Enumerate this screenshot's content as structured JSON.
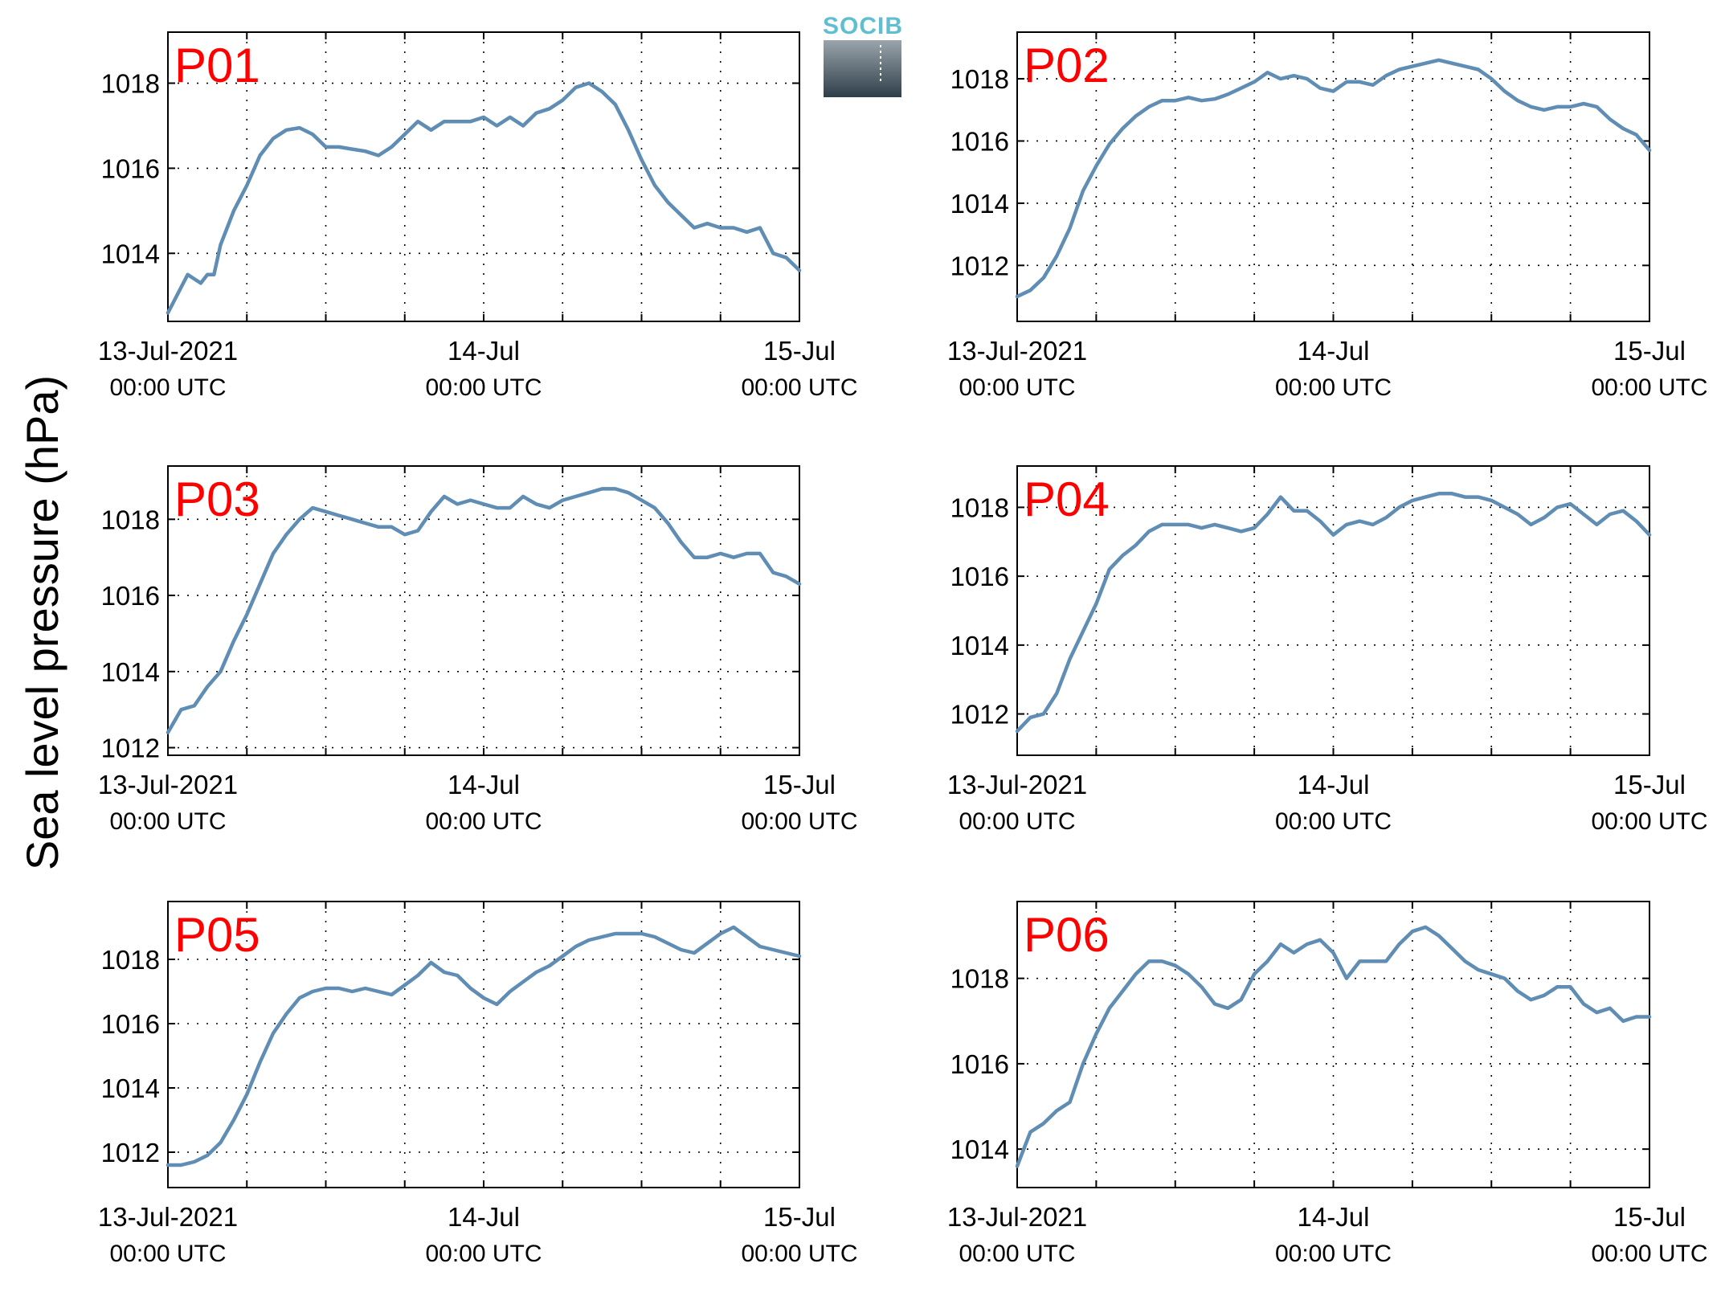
{
  "figure": {
    "ylabel": "Sea level pressure (hPa)",
    "colors": {
      "line": "#5f8db3",
      "title": "#ff0000",
      "logo_text": "#5fbfd0",
      "logo_top": "#9aa4ab",
      "logo_bottom": "#2f3f4a"
    },
    "logo": {
      "name": "socib-logo",
      "text": "SOCIB"
    }
  },
  "chart_data": [
    {
      "type": "line",
      "title": "P01",
      "x_unit": "hours since 13-Jul-2021 00:00 UTC",
      "xlim": [
        0,
        48
      ],
      "ylim": [
        1012.4,
        1019.2
      ],
      "yticks": [
        1014,
        1016,
        1018
      ],
      "xticks": [
        {
          "label": "13-Jul-2021",
          "sub": "00:00 UTC"
        },
        {
          "label": "14-Jul",
          "sub": "00:00 UTC"
        },
        {
          "label": "15-Jul",
          "sub": "00:00 UTC"
        }
      ],
      "grid": true,
      "x": [
        0,
        1,
        1.5,
        2,
        2.5,
        3,
        3.5,
        4,
        5,
        6,
        7,
        8,
        9,
        10,
        11,
        12,
        13,
        14,
        15,
        16,
        17,
        18,
        19,
        20,
        21,
        22,
        23,
        24,
        25,
        26,
        27,
        28,
        29,
        30,
        31,
        32,
        33,
        34,
        35,
        36,
        37,
        38,
        39,
        40,
        41,
        42,
        43,
        44,
        45,
        46,
        47,
        48
      ],
      "y": [
        1012.6,
        1013.2,
        1013.5,
        1013.4,
        1013.3,
        1013.5,
        1013.5,
        1014.2,
        1015.0,
        1015.6,
        1016.3,
        1016.7,
        1016.9,
        1016.95,
        1016.8,
        1016.5,
        1016.5,
        1016.45,
        1016.4,
        1016.3,
        1016.5,
        1016.8,
        1017.1,
        1016.9,
        1017.1,
        1017.1,
        1017.1,
        1017.2,
        1017.0,
        1017.2,
        1017.0,
        1017.3,
        1017.4,
        1017.6,
        1017.9,
        1018.0,
        1017.8,
        1017.5,
        1016.9,
        1016.2,
        1015.6,
        1015.2,
        1014.9,
        1014.6,
        1014.7,
        1014.6,
        1014.6,
        1014.5,
        1014.6,
        1014.0,
        1013.9,
        1013.6
      ]
    },
    {
      "type": "line",
      "title": "P02",
      "x_unit": "hours since 13-Jul-2021 00:00 UTC",
      "xlim": [
        0,
        48
      ],
      "ylim": [
        1010.2,
        1019.5
      ],
      "yticks": [
        1012,
        1014,
        1016,
        1018
      ],
      "xticks": [
        {
          "label": "13-Jul-2021",
          "sub": "00:00 UTC"
        },
        {
          "label": "14-Jul",
          "sub": "00:00 UTC"
        },
        {
          "label": "15-Jul",
          "sub": "00:00 UTC"
        }
      ],
      "grid": true,
      "x": [
        0,
        1,
        2,
        3,
        4,
        5,
        6,
        7,
        8,
        9,
        10,
        11,
        12,
        13,
        14,
        15,
        16,
        17,
        18,
        19,
        20,
        21,
        22,
        23,
        24,
        25,
        26,
        27,
        28,
        29,
        30,
        31,
        32,
        33,
        34,
        35,
        36,
        37,
        38,
        39,
        40,
        41,
        42,
        43,
        44,
        45,
        46,
        47,
        48
      ],
      "y": [
        1011.0,
        1011.2,
        1011.6,
        1012.3,
        1013.2,
        1014.4,
        1015.2,
        1015.9,
        1016.4,
        1016.8,
        1017.1,
        1017.3,
        1017.3,
        1017.4,
        1017.3,
        1017.35,
        1017.5,
        1017.7,
        1017.9,
        1018.2,
        1018.0,
        1018.1,
        1018.0,
        1017.7,
        1017.6,
        1017.9,
        1017.9,
        1017.8,
        1018.1,
        1018.3,
        1018.4,
        1018.5,
        1018.6,
        1018.5,
        1018.4,
        1018.3,
        1018.0,
        1017.6,
        1017.3,
        1017.1,
        1017.0,
        1017.1,
        1017.1,
        1017.2,
        1017.1,
        1016.7,
        1016.4,
        1016.2,
        1015.7
      ]
    },
    {
      "type": "line",
      "title": "P03",
      "x_unit": "hours since 13-Jul-2021 00:00 UTC",
      "xlim": [
        0,
        48
      ],
      "ylim": [
        1011.8,
        1019.4
      ],
      "yticks": [
        1012,
        1014,
        1016,
        1018
      ],
      "xticks": [
        {
          "label": "13-Jul-2021",
          "sub": "00:00 UTC"
        },
        {
          "label": "14-Jul",
          "sub": "00:00 UTC"
        },
        {
          "label": "15-Jul",
          "sub": "00:00 UTC"
        }
      ],
      "grid": true,
      "x": [
        0,
        1,
        2,
        3,
        4,
        5,
        6,
        7,
        8,
        9,
        10,
        11,
        12,
        13,
        14,
        15,
        16,
        17,
        18,
        19,
        20,
        21,
        22,
        23,
        24,
        25,
        26,
        27,
        28,
        29,
        30,
        31,
        32,
        33,
        34,
        35,
        36,
        37,
        38,
        39,
        40,
        41,
        42,
        43,
        44,
        45,
        46,
        47,
        48
      ],
      "y": [
        1012.4,
        1013.0,
        1013.1,
        1013.6,
        1014.0,
        1014.8,
        1015.5,
        1016.3,
        1017.1,
        1017.6,
        1018.0,
        1018.3,
        1018.2,
        1018.1,
        1018.0,
        1017.9,
        1017.8,
        1017.8,
        1017.6,
        1017.7,
        1018.2,
        1018.6,
        1018.4,
        1018.5,
        1018.4,
        1018.3,
        1018.3,
        1018.6,
        1018.4,
        1018.3,
        1018.5,
        1018.6,
        1018.7,
        1018.8,
        1018.8,
        1018.7,
        1018.5,
        1018.3,
        1017.9,
        1017.4,
        1017.0,
        1017.0,
        1017.1,
        1017.0,
        1017.1,
        1017.1,
        1016.6,
        1016.5,
        1016.3
      ]
    },
    {
      "type": "line",
      "title": "P04",
      "x_unit": "hours since 13-Jul-2021 00:00 UTC",
      "xlim": [
        0,
        48
      ],
      "ylim": [
        1010.8,
        1019.2
      ],
      "yticks": [
        1012,
        1014,
        1016,
        1018
      ],
      "xticks": [
        {
          "label": "13-Jul-2021",
          "sub": "00:00 UTC"
        },
        {
          "label": "14-Jul",
          "sub": "00:00 UTC"
        },
        {
          "label": "15-Jul",
          "sub": "00:00 UTC"
        }
      ],
      "grid": true,
      "x": [
        0,
        1,
        2,
        3,
        4,
        5,
        6,
        7,
        8,
        9,
        10,
        11,
        12,
        13,
        14,
        15,
        16,
        17,
        18,
        19,
        20,
        21,
        22,
        23,
        24,
        25,
        26,
        27,
        28,
        29,
        30,
        31,
        32,
        33,
        34,
        35,
        36,
        37,
        38,
        39,
        40,
        41,
        42,
        43,
        44,
        45,
        46,
        47,
        48
      ],
      "y": [
        1011.5,
        1011.9,
        1012.0,
        1012.6,
        1013.6,
        1014.4,
        1015.2,
        1016.2,
        1016.6,
        1016.9,
        1017.3,
        1017.5,
        1017.5,
        1017.5,
        1017.4,
        1017.5,
        1017.4,
        1017.3,
        1017.4,
        1017.8,
        1018.3,
        1017.9,
        1017.9,
        1017.6,
        1017.2,
        1017.5,
        1017.6,
        1017.5,
        1017.7,
        1018.0,
        1018.2,
        1018.3,
        1018.4,
        1018.4,
        1018.3,
        1018.3,
        1018.2,
        1018.0,
        1017.8,
        1017.5,
        1017.7,
        1018.0,
        1018.1,
        1017.8,
        1017.5,
        1017.8,
        1017.9,
        1017.6,
        1017.2
      ]
    },
    {
      "type": "line",
      "title": "P05",
      "x_unit": "hours since 13-Jul-2021 00:00 UTC",
      "xlim": [
        0,
        48
      ],
      "ylim": [
        1010.9,
        1019.8
      ],
      "yticks": [
        1012,
        1014,
        1016,
        1018
      ],
      "xticks": [
        {
          "label": "13-Jul-2021",
          "sub": "00:00 UTC"
        },
        {
          "label": "14-Jul",
          "sub": "00:00 UTC"
        },
        {
          "label": "15-Jul",
          "sub": "00:00 UTC"
        }
      ],
      "grid": true,
      "x": [
        0,
        1,
        2,
        3,
        4,
        5,
        6,
        7,
        8,
        9,
        10,
        11,
        12,
        13,
        14,
        15,
        16,
        17,
        18,
        19,
        20,
        21,
        22,
        23,
        24,
        25,
        26,
        27,
        28,
        29,
        30,
        31,
        32,
        33,
        34,
        35,
        36,
        37,
        38,
        39,
        40,
        41,
        42,
        43,
        44,
        45,
        46,
        47,
        48
      ],
      "y": [
        1011.6,
        1011.6,
        1011.7,
        1011.9,
        1012.3,
        1013.0,
        1013.8,
        1014.8,
        1015.7,
        1016.3,
        1016.8,
        1017.0,
        1017.1,
        1017.1,
        1017.0,
        1017.1,
        1017.0,
        1016.9,
        1017.2,
        1017.5,
        1017.9,
        1017.6,
        1017.5,
        1017.1,
        1016.8,
        1016.6,
        1017.0,
        1017.3,
        1017.6,
        1017.8,
        1018.1,
        1018.4,
        1018.6,
        1018.7,
        1018.8,
        1018.8,
        1018.8,
        1018.7,
        1018.5,
        1018.3,
        1018.2,
        1018.5,
        1018.8,
        1019.0,
        1018.7,
        1018.4,
        1018.3,
        1018.2,
        1018.1
      ]
    },
    {
      "type": "line",
      "title": "P06",
      "x_unit": "hours since 13-Jul-2021 00:00 UTC",
      "xlim": [
        0,
        48
      ],
      "ylim": [
        1013.1,
        1019.8
      ],
      "yticks": [
        1014,
        1016,
        1018
      ],
      "xticks": [
        {
          "label": "13-Jul-2021",
          "sub": "00:00 UTC"
        },
        {
          "label": "14-Jul",
          "sub": "00:00 UTC"
        },
        {
          "label": "15-Jul",
          "sub": "00:00 UTC"
        }
      ],
      "grid": true,
      "x": [
        0,
        1,
        2,
        3,
        4,
        5,
        6,
        7,
        8,
        9,
        10,
        11,
        12,
        13,
        14,
        15,
        16,
        17,
        18,
        19,
        20,
        21,
        22,
        23,
        24,
        25,
        26,
        27,
        28,
        29,
        30,
        31,
        32,
        33,
        34,
        35,
        36,
        37,
        38,
        39,
        40,
        41,
        42,
        43,
        44,
        45,
        46,
        47,
        48
      ],
      "y": [
        1013.6,
        1014.4,
        1014.6,
        1014.9,
        1015.1,
        1016.0,
        1016.7,
        1017.3,
        1017.7,
        1018.1,
        1018.4,
        1018.4,
        1018.3,
        1018.1,
        1017.8,
        1017.4,
        1017.3,
        1017.5,
        1018.1,
        1018.4,
        1018.8,
        1018.6,
        1018.8,
        1018.9,
        1018.6,
        1018.0,
        1018.4,
        1018.4,
        1018.4,
        1018.8,
        1019.1,
        1019.2,
        1019.0,
        1018.7,
        1018.4,
        1018.2,
        1018.1,
        1018.0,
        1017.7,
        1017.5,
        1017.6,
        1017.8,
        1017.8,
        1017.4,
        1017.2,
        1017.3,
        1017.0,
        1017.1,
        1017.1
      ]
    }
  ]
}
